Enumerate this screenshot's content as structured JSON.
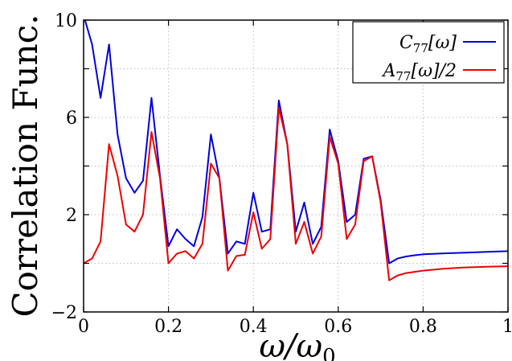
{
  "chart_data": {
    "type": "line",
    "title": "",
    "xlabel": "ω/ω0",
    "ylabel": "Correlation Func.",
    "xlim": [
      0,
      1
    ],
    "ylim": [
      -2,
      10
    ],
    "grid": true,
    "legend_position": "top-right",
    "x_ticks": [
      {
        "value": 0,
        "label": "0"
      },
      {
        "value": 0.2,
        "label": "0.2"
      },
      {
        "value": 0.4,
        "label": "0.4"
      },
      {
        "value": 0.6,
        "label": "0.6"
      },
      {
        "value": 0.8,
        "label": "0.8"
      },
      {
        "value": 1,
        "label": "1"
      }
    ],
    "y_ticks": [
      {
        "value": -2,
        "label": "−2"
      },
      {
        "value": 2,
        "label": "2"
      },
      {
        "value": 6,
        "label": "6"
      },
      {
        "value": 10,
        "label": "10"
      }
    ],
    "x": [
      0.0,
      0.02,
      0.04,
      0.06,
      0.08,
      0.1,
      0.12,
      0.14,
      0.16,
      0.18,
      0.2,
      0.22,
      0.24,
      0.26,
      0.28,
      0.3,
      0.32,
      0.34,
      0.36,
      0.38,
      0.4,
      0.42,
      0.44,
      0.46,
      0.48,
      0.5,
      0.52,
      0.54,
      0.56,
      0.58,
      0.6,
      0.62,
      0.64,
      0.66,
      0.68,
      0.7,
      0.72,
      0.74,
      0.76,
      0.78,
      0.8,
      0.85,
      0.9,
      0.95,
      1.0
    ],
    "series": [
      {
        "name": "C77[ω]",
        "color": "#0000dd",
        "values": [
          10.2,
          9.0,
          6.8,
          9.0,
          5.3,
          3.5,
          2.9,
          3.4,
          6.8,
          3.6,
          0.7,
          1.4,
          1.0,
          0.7,
          1.9,
          5.3,
          3.5,
          0.4,
          0.9,
          0.8,
          2.9,
          1.3,
          1.4,
          6.7,
          4.9,
          1.3,
          2.5,
          0.8,
          1.5,
          5.5,
          4.2,
          1.7,
          2.0,
          4.3,
          4.4,
          2.6,
          0.0,
          0.2,
          0.28,
          0.33,
          0.37,
          0.41,
          0.44,
          0.47,
          0.5
        ]
      },
      {
        "name": "A77[ω]/2",
        "color": "#ee0000",
        "values": [
          0.0,
          0.2,
          0.9,
          4.9,
          3.6,
          1.6,
          1.3,
          2.0,
          5.4,
          3.5,
          0.0,
          0.4,
          0.5,
          0.2,
          0.8,
          4.1,
          3.5,
          -0.3,
          0.3,
          0.35,
          2.1,
          0.6,
          1.0,
          6.4,
          4.9,
          0.8,
          1.7,
          0.4,
          1.1,
          5.2,
          4.1,
          1.0,
          1.6,
          4.2,
          4.4,
          2.5,
          -0.7,
          -0.5,
          -0.4,
          -0.35,
          -0.3,
          -0.22,
          -0.17,
          -0.14,
          -0.12
        ]
      }
    ],
    "legend": [
      {
        "base": "C",
        "sub": "77",
        "rest": "[ω]"
      },
      {
        "base": "A",
        "sub": "77",
        "rest": "[ω]/2"
      }
    ]
  }
}
